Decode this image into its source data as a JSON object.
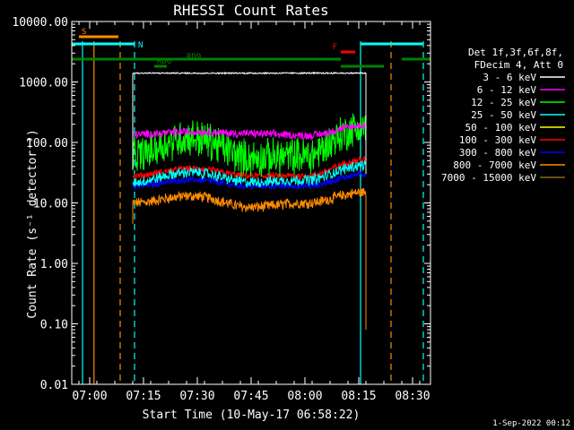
{
  "chart_data": {
    "type": "line",
    "title": "RHESSI Count Rates",
    "xlabel": "Start Time (10-May-17 06:58:22)",
    "ylabel": "Count Rate (s⁻¹ detector⁻¹)",
    "yscale": "log",
    "ylim": [
      0.01,
      10000
    ],
    "xlim_minutes": [
      -3,
      97
    ],
    "y_tick_labels": [
      "10000.00",
      "1000.00",
      "100.00",
      "10.00",
      "1.00",
      "0.10",
      "0.01"
    ],
    "x_ticks": [
      {
        "label": "07:00",
        "minutes": 2
      },
      {
        "label": "07:15",
        "minutes": 17
      },
      {
        "label": "07:30",
        "minutes": 32
      },
      {
        "label": "07:45",
        "minutes": 47
      },
      {
        "label": "08:00",
        "minutes": 62
      },
      {
        "label": "08:15",
        "minutes": 77
      },
      {
        "label": "08:30",
        "minutes": 92
      }
    ],
    "data_window_minutes": [
      14,
      79
    ],
    "series": [
      {
        "name": "3 - 6 keV",
        "color": "#ffffff",
        "values": [
          1400,
          1400,
          1400,
          1400,
          1400
        ],
        "noise": 0.005
      },
      {
        "name": "6 - 12 keV",
        "color": "#ff00ff",
        "values": [
          135,
          150,
          140,
          130,
          190
        ],
        "noise": 0.03
      },
      {
        "name": "12 - 25 keV",
        "color": "#00ff00",
        "values": [
          60,
          120,
          55,
          60,
          180
        ],
        "noise": 0.14
      },
      {
        "name": "25 - 50 keV",
        "color": "#00ffff",
        "values": [
          22,
          32,
          22,
          24,
          42
        ],
        "noise": 0.04
      },
      {
        "name": "50 - 100 keV",
        "color": "#ffff00",
        "values": [
          null
        ],
        "noise": 0
      },
      {
        "name": "100 - 300 keV",
        "color": "#ff0000",
        "values": [
          28,
          37,
          28,
          28,
          52
        ],
        "noise": 0.025
      },
      {
        "name": "300 - 800 keV",
        "color": "#0000ff",
        "values": [
          19,
          24,
          19,
          19,
          30
        ],
        "noise": 0.025
      },
      {
        "name": "800 - 7000 keV",
        "color": "#ff8c00",
        "values": [
          10,
          13,
          8.5,
          10,
          15
        ],
        "noise": 0.04
      },
      {
        "name": "7000 - 15000 keV",
        "color": "#8b6914",
        "values": [
          null
        ],
        "noise": 0
      }
    ],
    "status_bars": [
      {
        "label": "S",
        "color": "#ff8c00",
        "start": -1,
        "end": 10,
        "level": 0
      },
      {
        "label": "N",
        "color": "#00ffff",
        "start": -3,
        "end": 14.5,
        "level": 1
      },
      {
        "label": "",
        "color": "#00ffff",
        "start": 77.5,
        "end": 95,
        "level": 1
      },
      {
        "label": "F",
        "color": "#ff0000",
        "start": 72,
        "end": 76,
        "level": 2
      },
      {
        "label": "RD9",
        "color": "#008000",
        "start": -3,
        "end": 72,
        "level": 3
      },
      {
        "label": "",
        "color": "#008000",
        "start": 89,
        "end": 97,
        "level": 3
      },
      {
        "label": "RD6",
        "color": "#008000",
        "start": 20,
        "end": 23.5,
        "level": 4
      },
      {
        "label": "",
        "color": "#008000",
        "start": 72,
        "end": 84,
        "level": 4
      }
    ],
    "vertical_lines": [
      {
        "minutes": 0,
        "color": "#00ffff",
        "style": "solid"
      },
      {
        "minutes": 3.2,
        "color": "#ff8c00",
        "style": "solid"
      },
      {
        "minutes": 14.5,
        "color": "#00ffff",
        "style": "dashed"
      },
      {
        "minutes": 10.5,
        "color": "#ff8c00",
        "style": "dashed"
      },
      {
        "minutes": 77.5,
        "color": "#00ffff",
        "style": "solid"
      },
      {
        "minutes": 95,
        "color": "#00ffff",
        "style": "dashed"
      },
      {
        "minutes": 86,
        "color": "#ff8c00",
        "style": "dashed"
      }
    ]
  },
  "legend": {
    "header_line1": "Det 1f,3f,6f,8f,",
    "header_line2": "FDecim 4, Att 0"
  },
  "footer_date": "1-Sep-2022 00:12"
}
